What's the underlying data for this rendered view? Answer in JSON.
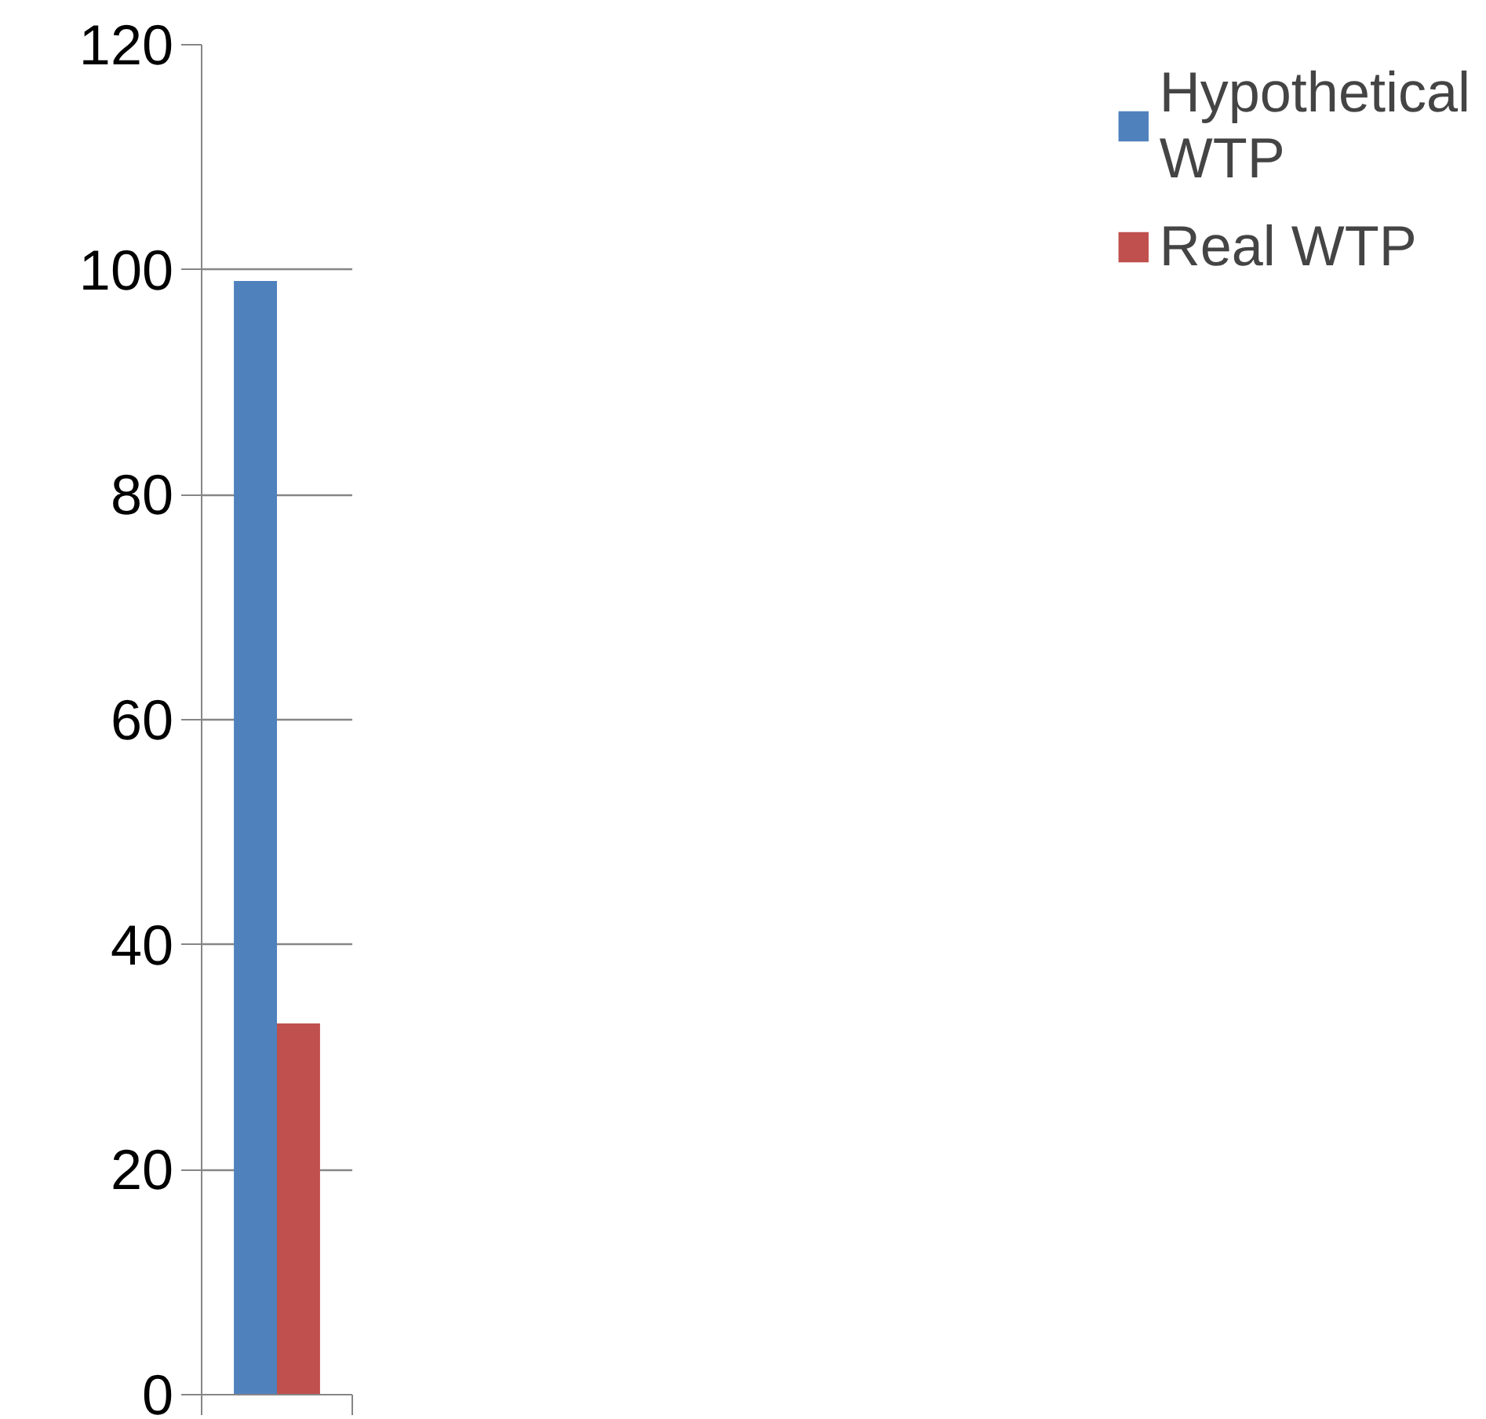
{
  "chart_data": {
    "type": "bar",
    "categories": [
      null
    ],
    "series": [
      {
        "name": "Hypothetical WTP",
        "color": "#4f81bd",
        "values": [
          99
        ]
      },
      {
        "name": "Real WTP",
        "color": "#c0504d",
        "values": [
          33
        ]
      }
    ],
    "ylim": [
      0,
      120
    ],
    "yticks": [
      0,
      20,
      40,
      60,
      80,
      100,
      120
    ],
    "grid": "y",
    "legend": "right"
  }
}
